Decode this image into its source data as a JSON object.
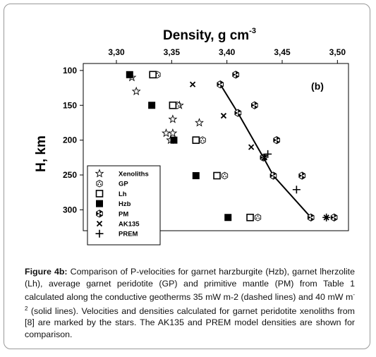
{
  "chart_data": {
    "type": "scatter",
    "panel_label": "(b)",
    "xlabel_main": "Density, g cm",
    "xlabel_sup": "-3",
    "ylabel": "H, km",
    "x_axis_position": "top",
    "y_inverted": true,
    "xlim": [
      3.27,
      3.51
    ],
    "ylim": [
      90,
      330
    ],
    "x_ticks": [
      3.3,
      3.35,
      3.4,
      3.45,
      3.5
    ],
    "x_tick_labels": [
      "3,30",
      "3,35",
      "3,40",
      "3,45",
      "3,50"
    ],
    "y_ticks": [
      100,
      150,
      200,
      250,
      300
    ],
    "y_tick_labels": [
      "100",
      "150",
      "200",
      "250",
      "300"
    ],
    "grid": false,
    "legend_position": "bottom-left",
    "series": [
      {
        "name": "Xenoliths",
        "marker": "star",
        "points": [
          [
            3.314,
            110
          ],
          [
            3.318,
            130
          ],
          [
            3.357,
            150
          ],
          [
            3.351,
            170
          ],
          [
            3.375,
            175
          ],
          [
            3.345,
            190
          ],
          [
            3.351,
            190
          ],
          [
            3.349,
            200
          ]
        ]
      },
      {
        "name": "GP",
        "marker": "hex-dots",
        "points": [
          [
            3.337,
            106
          ],
          [
            3.355,
            150
          ],
          [
            3.378,
            200
          ],
          [
            3.398,
            251
          ],
          [
            3.428,
            311
          ]
        ]
      },
      {
        "name": "Lh",
        "marker": "open-square",
        "points": [
          [
            3.333,
            106
          ],
          [
            3.351,
            150
          ],
          [
            3.372,
            200
          ],
          [
            3.391,
            251
          ],
          [
            3.421,
            311
          ]
        ]
      },
      {
        "name": "Hzb",
        "marker": "filled-square",
        "points": [
          [
            3.312,
            106
          ],
          [
            3.332,
            150
          ],
          [
            3.352,
            200
          ],
          [
            3.372,
            251
          ],
          [
            3.401,
            311
          ]
        ]
      },
      {
        "name": "PM",
        "marker": "half-filled-hex",
        "points": [
          [
            3.408,
            106
          ],
          [
            3.394,
            120
          ],
          [
            3.425,
            150
          ],
          [
            3.41,
            161
          ],
          [
            3.445,
            200
          ],
          [
            3.433,
            225
          ],
          [
            3.442,
            251
          ],
          [
            3.468,
            251
          ],
          [
            3.476,
            311
          ],
          [
            3.497,
            311
          ]
        ]
      },
      {
        "name": "AK135",
        "marker": "x",
        "points": [
          [
            3.369,
            120
          ],
          [
            3.397,
            165
          ],
          [
            3.422,
            210
          ],
          [
            3.434,
            225
          ],
          [
            3.49,
            311
          ]
        ]
      },
      {
        "name": "PREM",
        "marker": "plus",
        "points": [
          [
            3.437,
            220
          ],
          [
            3.463,
            271
          ],
          [
            3.49,
            311
          ]
        ]
      }
    ],
    "lines": [
      {
        "style": "solid",
        "points": [
          [
            3.394,
            120
          ],
          [
            3.41,
            161
          ],
          [
            3.433,
            225
          ],
          [
            3.442,
            251
          ],
          [
            3.476,
            311
          ]
        ]
      }
    ]
  },
  "caption": {
    "label": "Figure 4b:",
    "text_1": " Comparison of P-velocities for garnet harzburgite (Hzb), garnet lherzolite (Lh), average garnet peridotite (GP) and primitive mantle (PM) from Table 1 calculated along the conductive geotherms 35 mW m-2 (dashed lines) and 40 mW m",
    "sup": "-2",
    "text_2": " (solid lines). Velocities and densities calculated for garnet peridotite xenoliths from [8] are marked by the stars. The AK135 and PREM model densities are shown for comparison."
  },
  "colors": {
    "ink": "#000000",
    "frame": "#999999"
  }
}
